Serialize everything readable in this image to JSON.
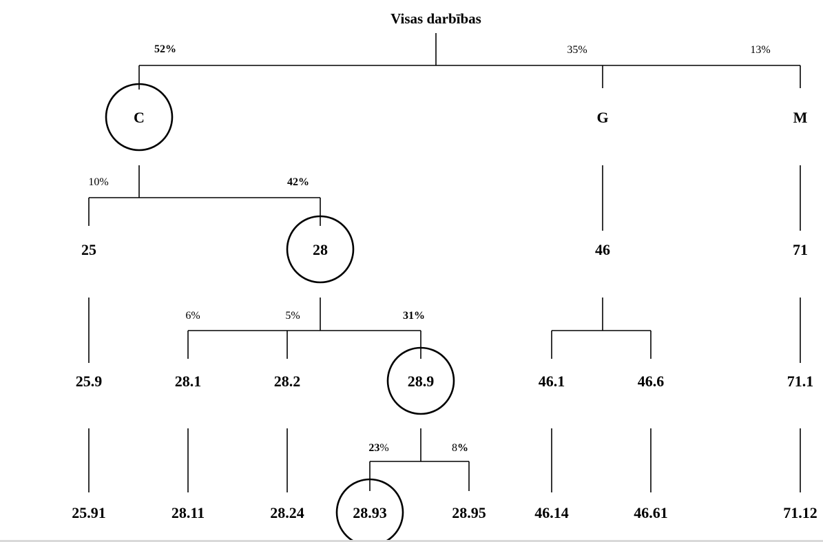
{
  "title": "Visas darbības",
  "nodes": {
    "C": "C",
    "G": "G",
    "M": "M",
    "n25": "25",
    "n28": "28",
    "n46": "46",
    "n71": "71",
    "n25_9": "25.9",
    "n28_1": "28.1",
    "n28_2": "28.2",
    "n28_9": "28.9",
    "n46_1": "46.1",
    "n46_6": "46.6",
    "n71_1": "71.1",
    "n25_91": "25.91",
    "n28_11": "28.11",
    "n28_24": "28.24",
    "n28_93": "28.93",
    "n28_95": "28.95",
    "n46_14": "46.14",
    "n46_61": "46.61",
    "n71_12": "71.12"
  },
  "percentages": {
    "root_C": "52%",
    "root_G": "35%",
    "root_M": "13%",
    "C_25": "10%",
    "C_28": "42%",
    "n28_1": "6%",
    "n28_2": "5%",
    "n28_9": "31%",
    "n28_93_num": "23",
    "n28_93_sign": "%",
    "n28_95_num": "8",
    "n28_95_sign": "%"
  },
  "highlighted_path": [
    "C",
    "28",
    "28.9",
    "28.93"
  ]
}
